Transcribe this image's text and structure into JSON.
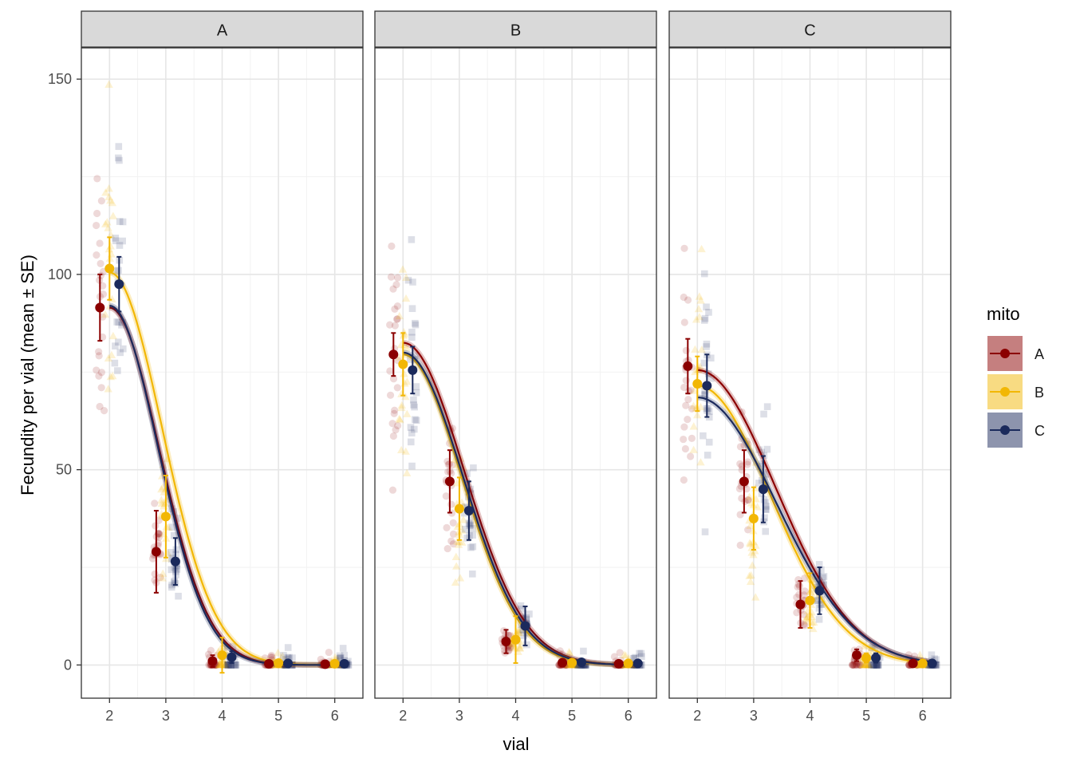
{
  "chart_data": {
    "type": "scatter",
    "title": "",
    "xlabel": "vial",
    "ylabel": "Fecundity per vial (mean ± SE)",
    "x_ticks": [
      2,
      3,
      4,
      5,
      6
    ],
    "y_ticks": [
      0,
      50,
      100,
      150
    ],
    "xlim": [
      1.5,
      6.5
    ],
    "ylim": [
      -8.5,
      158
    ],
    "grid": true,
    "legend": {
      "title": "mito",
      "position": "right",
      "entries": [
        {
          "label": "A",
          "color": "#8B0000",
          "shape": "circle"
        },
        {
          "label": "B",
          "color": "#F2B705",
          "shape": "triangle"
        },
        {
          "label": "C",
          "color": "#1B2A5C",
          "shape": "square"
        }
      ]
    },
    "panels": [
      {
        "facet": "A",
        "series": [
          {
            "mito": "A",
            "x": [
              2,
              3,
              4,
              5,
              6
            ],
            "mean": [
              91.5,
              29,
              1,
              0.3,
              0.2
            ],
            "se": [
              8.5,
              10.5,
              1.5,
              0.3,
              0.3
            ],
            "curve": {
              "a": 91.5,
              "s": 0.88
            }
          },
          {
            "mito": "B",
            "x": [
              2,
              3,
              4,
              5,
              6
            ],
            "mean": [
              101.5,
              38,
              2.5,
              0.5,
              0.3
            ],
            "se": [
              8,
              10.5,
              4.5,
              0.5,
              0.4
            ],
            "curve": {
              "a": 100.5,
              "s": 0.93
            }
          },
          {
            "mito": "C",
            "x": [
              2,
              3,
              4,
              5,
              6
            ],
            "mean": [
              97.5,
              26.5,
              2,
              0.4,
              0.3
            ],
            "se": [
              7,
              6,
              1.5,
              0.4,
              0.3
            ],
            "curve": {
              "a": 92,
              "s": 0.86
            }
          }
        ]
      },
      {
        "facet": "B",
        "series": [
          {
            "mito": "A",
            "x": [
              2,
              3,
              4,
              5,
              6
            ],
            "mean": [
              79.5,
              47,
              6,
              0.6,
              0.3
            ],
            "se": [
              5.5,
              8,
              3,
              0.5,
              0.3
            ],
            "curve": {
              "a": 82.5,
              "s": 1.08
            }
          },
          {
            "mito": "B",
            "x": [
              2,
              3,
              4,
              5,
              6
            ],
            "mean": [
              77,
              40,
              6.5,
              0.6,
              0.4
            ],
            "se": [
              8,
              8,
              6,
              0.5,
              0.4
            ],
            "curve": {
              "a": 79.5,
              "s": 1.04
            }
          },
          {
            "mito": "C",
            "x": [
              2,
              3,
              4,
              5,
              6
            ],
            "mean": [
              75.5,
              39.5,
              10,
              0.7,
              0.4
            ],
            "se": [
              6,
              7.5,
              5,
              0.5,
              0.4
            ],
            "curve": {
              "a": 80,
              "s": 1.06
            }
          }
        ]
      },
      {
        "facet": "C",
        "series": [
          {
            "mito": "A",
            "x": [
              2,
              3,
              4,
              5,
              6
            ],
            "mean": [
              76.5,
              47,
              15.5,
              2.5,
              0.4
            ],
            "se": [
              7,
              8,
              6,
              1.5,
              0.4
            ],
            "curve": {
              "a": 75.5,
              "s": 1.38
            }
          },
          {
            "mito": "B",
            "x": [
              2,
              3,
              4,
              5,
              6
            ],
            "mean": [
              72,
              37.5,
              16.5,
              1.8,
              0.4
            ],
            "se": [
              7,
              8,
              7,
              1.2,
              0.4
            ],
            "curve": {
              "a": 71.5,
              "s": 1.3
            }
          },
          {
            "mito": "C",
            "x": [
              2,
              3,
              4,
              5,
              6
            ],
            "mean": [
              71.5,
              45,
              19,
              1.8,
              0.4
            ],
            "se": [
              8,
              8.5,
              6,
              1.2,
              0.4
            ],
            "curve": {
              "a": 68.5,
              "s": 1.4
            }
          }
        ]
      }
    ]
  }
}
